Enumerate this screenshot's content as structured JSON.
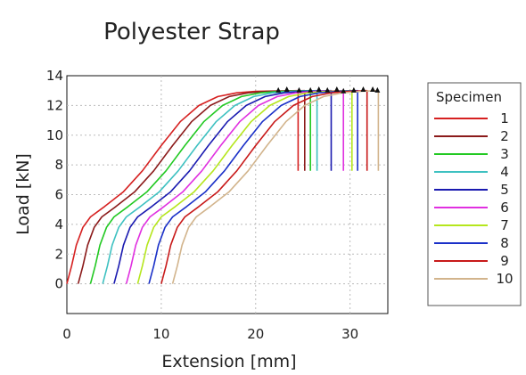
{
  "chart_data": {
    "type": "line",
    "title": "Polyester Strap",
    "xlabel": "Extension [mm]",
    "ylabel": "Load [kN]",
    "xlim": [
      0,
      34
    ],
    "ylim": [
      -2,
      14
    ],
    "xticks": [
      0,
      10,
      20,
      30
    ],
    "yticks": [
      0,
      2,
      4,
      6,
      8,
      10,
      12,
      14
    ],
    "grid": true,
    "legend": {
      "title": "Specimen",
      "placement": "right"
    },
    "series": [
      {
        "name": "1",
        "color": "#d62020",
        "points": [
          [
            0.0,
            0
          ],
          [
            0.5,
            1.2
          ],
          [
            1,
            2.6
          ],
          [
            1.7,
            3.8
          ],
          [
            2.5,
            4.5
          ],
          [
            4,
            5.2
          ],
          [
            6,
            6.2
          ],
          [
            8,
            7.6
          ],
          [
            10,
            9.3
          ],
          [
            12,
            10.9
          ],
          [
            14,
            12.0
          ],
          [
            16,
            12.6
          ],
          [
            18,
            12.85
          ],
          [
            20,
            12.95
          ],
          [
            24.5,
            13.0
          ],
          [
            24.5,
            7.6
          ]
        ],
        "peak": [
          24.5,
          13.0
        ]
      },
      {
        "name": "2",
        "color": "#8b1a1a",
        "points": [
          [
            1.2,
            0
          ],
          [
            1.7,
            1.2
          ],
          [
            2.2,
            2.6
          ],
          [
            2.9,
            3.8
          ],
          [
            3.7,
            4.5
          ],
          [
            5.2,
            5.2
          ],
          [
            7.2,
            6.2
          ],
          [
            9.2,
            7.6
          ],
          [
            11.2,
            9.3
          ],
          [
            13.2,
            10.9
          ],
          [
            15.2,
            12.0
          ],
          [
            17.2,
            12.6
          ],
          [
            19.2,
            12.85
          ],
          [
            21.2,
            12.95
          ],
          [
            25.2,
            13.0
          ],
          [
            25.2,
            7.6
          ]
        ],
        "peak": [
          25.2,
          13.0
        ]
      },
      {
        "name": "3",
        "color": "#22c922",
        "points": [
          [
            2.5,
            0
          ],
          [
            3.0,
            1.2
          ],
          [
            3.5,
            2.6
          ],
          [
            4.2,
            3.8
          ],
          [
            5.0,
            4.5
          ],
          [
            6.5,
            5.2
          ],
          [
            8.5,
            6.2
          ],
          [
            10.5,
            7.6
          ],
          [
            12.5,
            9.3
          ],
          [
            14.5,
            10.9
          ],
          [
            16.5,
            12.0
          ],
          [
            18.5,
            12.6
          ],
          [
            20.5,
            12.85
          ],
          [
            22.5,
            12.95
          ],
          [
            25.8,
            13.0
          ],
          [
            25.8,
            7.6
          ]
        ],
        "peak": [
          25.8,
          13.0
        ]
      },
      {
        "name": "4",
        "color": "#3ec1c1",
        "points": [
          [
            3.8,
            0
          ],
          [
            4.3,
            1.2
          ],
          [
            4.8,
            2.6
          ],
          [
            5.5,
            3.8
          ],
          [
            6.3,
            4.5
          ],
          [
            7.8,
            5.2
          ],
          [
            9.8,
            6.2
          ],
          [
            11.8,
            7.6
          ],
          [
            13.8,
            9.3
          ],
          [
            15.8,
            10.9
          ],
          [
            17.8,
            12.0
          ],
          [
            19.8,
            12.6
          ],
          [
            21.8,
            12.85
          ],
          [
            23.8,
            12.95
          ],
          [
            26.5,
            13.0
          ],
          [
            26.5,
            7.6
          ]
        ],
        "peak": [
          26.5,
          13.0
        ]
      },
      {
        "name": "5",
        "color": "#1a1ab0",
        "points": [
          [
            5.0,
            0
          ],
          [
            5.5,
            1.2
          ],
          [
            6.0,
            2.6
          ],
          [
            6.7,
            3.8
          ],
          [
            7.5,
            4.5
          ],
          [
            9.0,
            5.2
          ],
          [
            11.0,
            6.2
          ],
          [
            13.0,
            7.6
          ],
          [
            15.0,
            9.3
          ],
          [
            17.0,
            10.9
          ],
          [
            19.0,
            12.0
          ],
          [
            21.0,
            12.6
          ],
          [
            23.0,
            12.85
          ],
          [
            25.0,
            12.95
          ],
          [
            28.0,
            13.0
          ],
          [
            28.0,
            7.6
          ]
        ],
        "peak": [
          28.0,
          13.0
        ]
      },
      {
        "name": "6",
        "color": "#e030e0",
        "points": [
          [
            6.3,
            0
          ],
          [
            6.8,
            1.2
          ],
          [
            7.3,
            2.6
          ],
          [
            8.0,
            3.8
          ],
          [
            8.8,
            4.5
          ],
          [
            10.3,
            5.2
          ],
          [
            12.3,
            6.2
          ],
          [
            14.3,
            7.6
          ],
          [
            16.3,
            9.3
          ],
          [
            18.3,
            10.9
          ],
          [
            20.3,
            12.0
          ],
          [
            22.3,
            12.6
          ],
          [
            24.3,
            12.85
          ],
          [
            26.3,
            12.95
          ],
          [
            29.3,
            13.0
          ],
          [
            29.3,
            7.6
          ]
        ],
        "peak": [
          29.3,
          13.0
        ]
      },
      {
        "name": "7",
        "color": "#b5e61d",
        "points": [
          [
            7.5,
            0
          ],
          [
            8.0,
            1.2
          ],
          [
            8.5,
            2.6
          ],
          [
            9.2,
            3.8
          ],
          [
            10.0,
            4.5
          ],
          [
            11.5,
            5.2
          ],
          [
            13.5,
            6.2
          ],
          [
            15.5,
            7.6
          ],
          [
            17.5,
            9.3
          ],
          [
            19.5,
            10.9
          ],
          [
            21.5,
            12.0
          ],
          [
            23.5,
            12.6
          ],
          [
            25.5,
            12.85
          ],
          [
            27.5,
            12.95
          ],
          [
            30.2,
            13.0
          ],
          [
            30.2,
            7.6
          ]
        ],
        "peak": [
          30.2,
          13.0
        ]
      },
      {
        "name": "8",
        "color": "#1a30c8",
        "points": [
          [
            8.7,
            0
          ],
          [
            9.2,
            1.2
          ],
          [
            9.7,
            2.6
          ],
          [
            10.4,
            3.8
          ],
          [
            11.2,
            4.5
          ],
          [
            12.7,
            5.2
          ],
          [
            14.7,
            6.2
          ],
          [
            16.7,
            7.6
          ],
          [
            18.7,
            9.3
          ],
          [
            20.7,
            10.9
          ],
          [
            22.7,
            12.0
          ],
          [
            24.7,
            12.6
          ],
          [
            26.7,
            12.85
          ],
          [
            28.7,
            12.95
          ],
          [
            30.8,
            13.0
          ],
          [
            30.8,
            7.6
          ]
        ],
        "peak": [
          30.8,
          13.0
        ]
      },
      {
        "name": "9",
        "color": "#c81a1a",
        "points": [
          [
            10.0,
            0
          ],
          [
            10.5,
            1.2
          ],
          [
            11.0,
            2.6
          ],
          [
            11.7,
            3.8
          ],
          [
            12.5,
            4.5
          ],
          [
            14.0,
            5.2
          ],
          [
            16.0,
            6.2
          ],
          [
            18.0,
            7.6
          ],
          [
            20.0,
            9.3
          ],
          [
            22.0,
            10.9
          ],
          [
            24.0,
            12.0
          ],
          [
            26.0,
            12.6
          ],
          [
            28.0,
            12.85
          ],
          [
            30.0,
            12.95
          ],
          [
            31.8,
            13.0
          ],
          [
            31.8,
            7.6
          ]
        ],
        "peak": [
          31.8,
          13.0
        ]
      },
      {
        "name": "10",
        "color": "#d2b48c",
        "points": [
          [
            11.2,
            0
          ],
          [
            11.7,
            1.2
          ],
          [
            12.2,
            2.6
          ],
          [
            12.9,
            3.8
          ],
          [
            13.7,
            4.5
          ],
          [
            15.2,
            5.2
          ],
          [
            17.2,
            6.2
          ],
          [
            19.2,
            7.6
          ],
          [
            21.2,
            9.3
          ],
          [
            23.2,
            10.9
          ],
          [
            25.2,
            12.0
          ],
          [
            27.2,
            12.6
          ],
          [
            29.2,
            12.85
          ],
          [
            31.2,
            12.95
          ],
          [
            33.0,
            13.0
          ],
          [
            33.0,
            7.6
          ]
        ],
        "peak": [
          33.0,
          13.0
        ]
      }
    ],
    "markers": [
      [
        22.4,
        13.05
      ],
      [
        23.3,
        13.1
      ],
      [
        24.6,
        13.05
      ],
      [
        25.8,
        13.05
      ],
      [
        26.7,
        13.1
      ],
      [
        27.6,
        13.05
      ],
      [
        28.6,
        13.1
      ],
      [
        29.3,
        13.0
      ],
      [
        30.4,
        13.05
      ],
      [
        31.4,
        13.1
      ],
      [
        32.4,
        13.1
      ],
      [
        32.9,
        13.05
      ]
    ]
  }
}
